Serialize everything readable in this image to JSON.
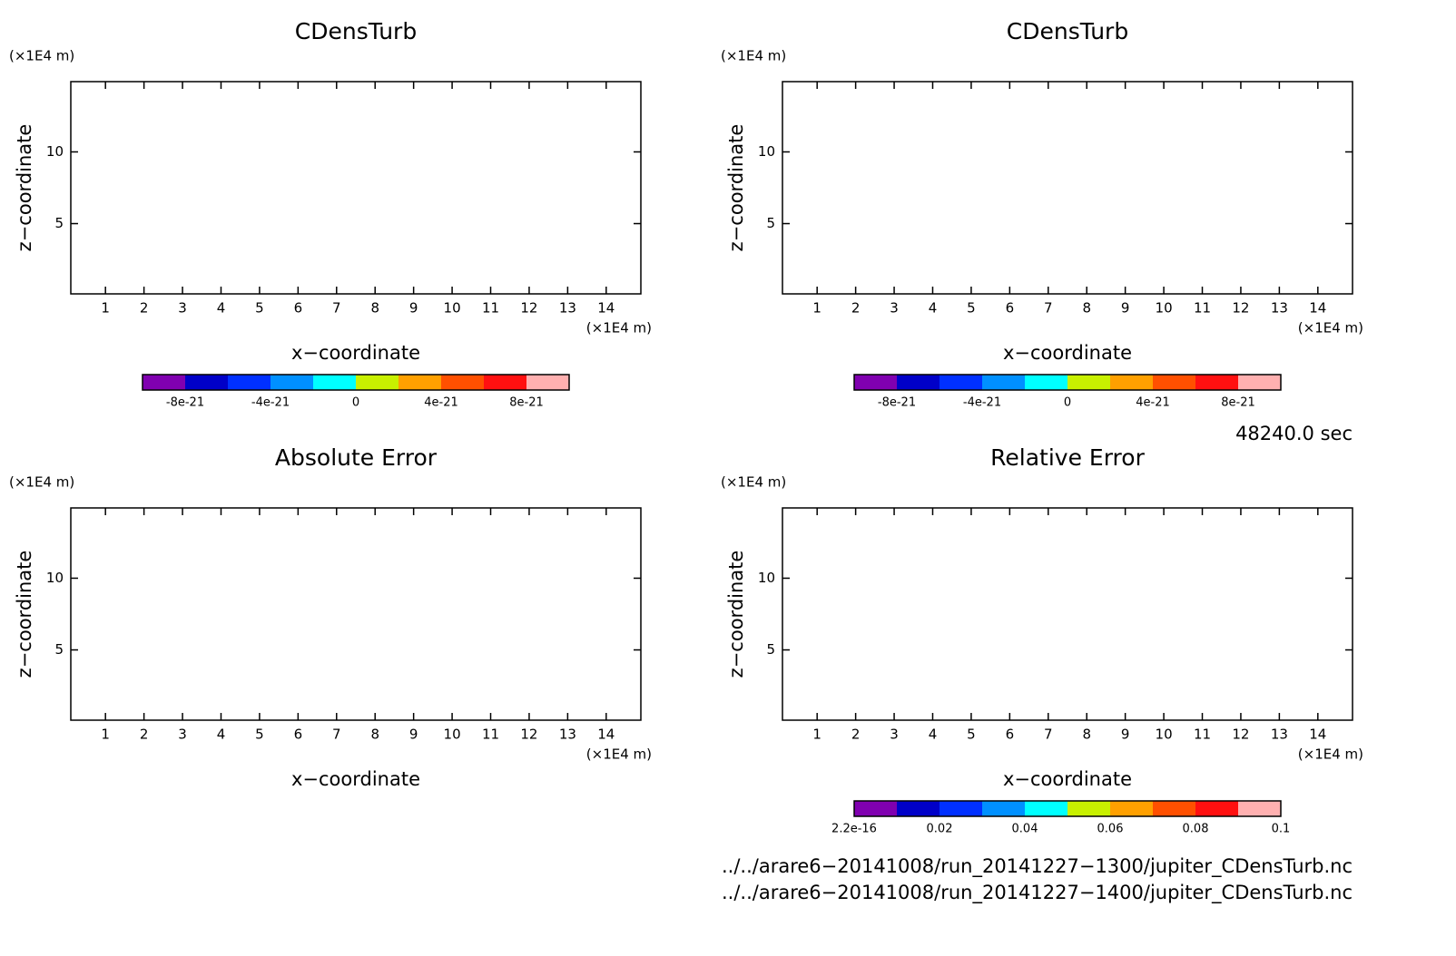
{
  "chart_data": [
    {
      "type": "contour",
      "title": "CDensTurb",
      "xlabel": "x−coordinate",
      "ylabel": "z−coordinate",
      "xunit": "(×1E4 m)",
      "yunit": "(×1E4 m)",
      "xlim": [
        0.1,
        14.9
      ],
      "ylim": [
        0.1,
        14.9
      ],
      "xticks": [
        1,
        2,
        3,
        4,
        5,
        6,
        7,
        8,
        9,
        10,
        11,
        12,
        13,
        14
      ],
      "yticks": [
        5,
        10
      ],
      "colorbar": {
        "colors": [
          "#8000b0",
          "#0000c8",
          "#0030ff",
          "#0090ff",
          "#00ffff",
          "#c8f000",
          "#ffa000",
          "#ff5000",
          "#ff1010",
          "#ffb0b0"
        ],
        "clim": [
          -1e-20,
          1e-20
        ],
        "ticks": [
          -8e-21,
          -4e-21,
          0,
          4e-21,
          8e-21
        ]
      }
    },
    {
      "type": "contour",
      "title": "CDensTurb",
      "xlabel": "x−coordinate",
      "ylabel": "z−coordinate",
      "xunit": "(×1E4 m)",
      "yunit": "(×1E4 m)",
      "xlim": [
        0.1,
        14.9
      ],
      "ylim": [
        0.1,
        14.9
      ],
      "xticks": [
        1,
        2,
        3,
        4,
        5,
        6,
        7,
        8,
        9,
        10,
        11,
        12,
        13,
        14
      ],
      "yticks": [
        5,
        10
      ],
      "colorbar": {
        "colors": [
          "#8000b0",
          "#0000c8",
          "#0030ff",
          "#0090ff",
          "#00ffff",
          "#c8f000",
          "#ffa000",
          "#ff5000",
          "#ff1010",
          "#ffb0b0"
        ],
        "clim": [
          -1e-20,
          1e-20
        ],
        "ticks": [
          -8e-21,
          -4e-21,
          0,
          4e-21,
          8e-21
        ]
      }
    },
    {
      "type": "contour",
      "title": "Absolute Error",
      "xlabel": "x−coordinate",
      "ylabel": "z−coordinate",
      "xunit": "(×1E4 m)",
      "yunit": "(×1E4 m)",
      "xlim": [
        0.1,
        14.9
      ],
      "ylim": [
        0.1,
        14.9
      ],
      "xticks": [
        1,
        2,
        3,
        4,
        5,
        6,
        7,
        8,
        9,
        10,
        11,
        12,
        13,
        14
      ],
      "yticks": [
        5,
        10
      ]
    },
    {
      "type": "contour",
      "title": "Relative Error",
      "xlabel": "x−coordinate",
      "ylabel": "z−coordinate",
      "xunit": "(×1E4 m)",
      "yunit": "(×1E4 m)",
      "xlim": [
        0.1,
        14.9
      ],
      "ylim": [
        0.1,
        14.9
      ],
      "xticks": [
        1,
        2,
        3,
        4,
        5,
        6,
        7,
        8,
        9,
        10,
        11,
        12,
        13,
        14
      ],
      "yticks": [
        5,
        10
      ],
      "colorbar": {
        "colors": [
          "#8000b0",
          "#0000c8",
          "#0030ff",
          "#0090ff",
          "#00ffff",
          "#c8f000",
          "#ffa000",
          "#ff5000",
          "#ff1010",
          "#ffb0b0"
        ],
        "clim": [
          0,
          0.1
        ],
        "ticks": [
          2.2e-16,
          0.02,
          0.04,
          0.06,
          0.08,
          0.1
        ]
      }
    }
  ],
  "footer": {
    "time": "48240.0 sec",
    "files": [
      "../../arare6−20141008/run_20141227−1300/jupiter_CDensTurb.nc",
      "../../arare6−20141008/run_20141227−1400/jupiter_CDensTurb.nc"
    ]
  }
}
